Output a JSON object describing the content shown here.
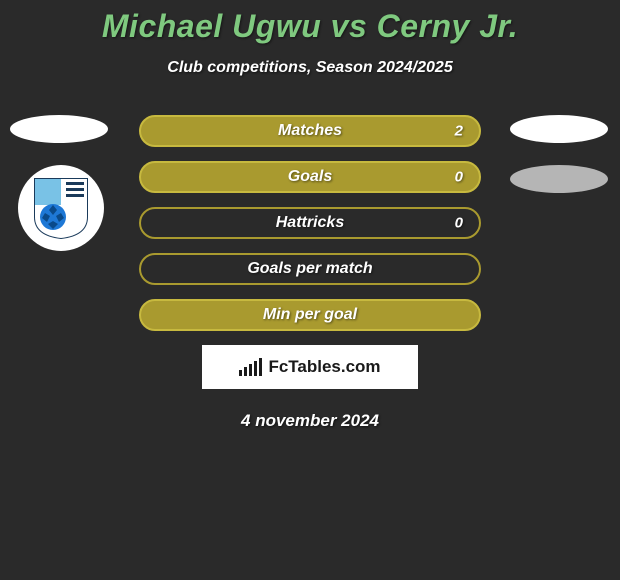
{
  "title": "Michael Ugwu vs Cerny Jr.",
  "subtitle": "Club competitions, Season 2024/2025",
  "stats": [
    {
      "label": "Matches",
      "value": "2",
      "filled": true,
      "show_value": true
    },
    {
      "label": "Goals",
      "value": "0",
      "filled": true,
      "show_value": true
    },
    {
      "label": "Hattricks",
      "value": "0",
      "filled": false,
      "show_value": true
    },
    {
      "label": "Goals per match",
      "value": "",
      "filled": false,
      "show_value": false
    },
    {
      "label": "Min per goal",
      "value": "",
      "filled": true,
      "show_value": false
    }
  ],
  "brand_text": "FcTables.com",
  "date_text": "4 november 2024",
  "colors": {
    "background": "#2a2a2a",
    "title": "#7fc97f",
    "pill_fill": "#a99a2f",
    "pill_border_filled": "#c7b93f",
    "pill_border_outline": "#a99a2f",
    "text": "#ffffff",
    "brand_bg": "#ffffff",
    "brand_fg": "#1a1a1a"
  },
  "club_badge": {
    "ball_color": "#1e78d6",
    "stripe1": "#79c2e6",
    "stripe2": "#ffffff",
    "outline": "#1a3a5a"
  },
  "brand_bar_heights": [
    6,
    9,
    12,
    15,
    18
  ]
}
